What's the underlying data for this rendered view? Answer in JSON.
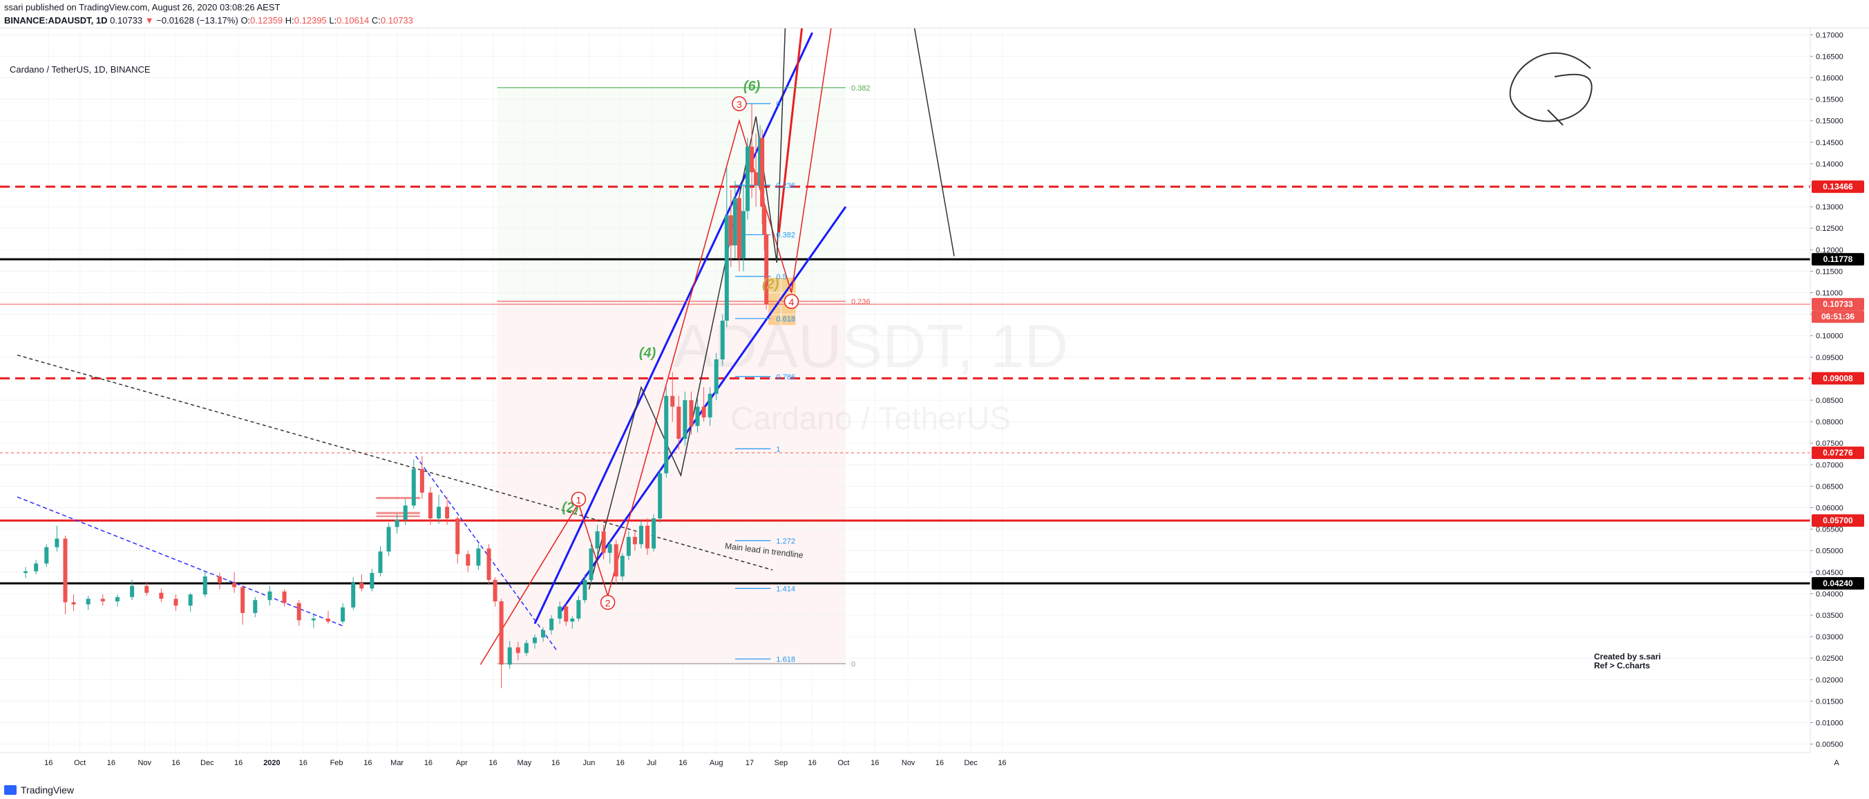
{
  "header": {
    "published": "ssari published on TradingView.com, August 26, 2020 03:08:26 AEST",
    "symbol": "BINANCE:ADAUSDT, 1D",
    "last": "0.10733",
    "change": "−0.01628 (−13.17%)",
    "o_label": "O:",
    "o": "0.12359",
    "h_label": "H:",
    "h": "0.12395",
    "l_label": "L:",
    "l": "0.10614",
    "c_label": "C:",
    "c": "0.10733"
  },
  "legend": "Cardano / TetherUS, 1D, BINANCE",
  "watermark": {
    "symbol": "ADAUSDT, 1D",
    "name": "Cardano / TetherUS"
  },
  "footer": {
    "brand": "TradingView",
    "corner": "A"
  },
  "credit": {
    "line1": "Created by s.sari",
    "line2": "Ref > C.charts"
  },
  "colors": {
    "up": "#26a69a",
    "down": "#ef5350",
    "red": "#e91e1e",
    "blue": "#1a1aff",
    "fib": "#2196f3",
    "green": "#4caf50",
    "black": "#000000"
  },
  "chart_data": {
    "type": "candlestick",
    "x_ticks": [
      "16",
      "Oct",
      "16",
      "Nov",
      "16",
      "Dec",
      "16",
      "2020",
      "16",
      "Feb",
      "16",
      "Mar",
      "16",
      "Apr",
      "16",
      "May",
      "16",
      "Jun",
      "16",
      "Jul",
      "16",
      "Aug",
      "17",
      "Sep",
      "16",
      "Oct",
      "16",
      "Nov",
      "16",
      "Dec",
      "16"
    ],
    "x_tick_dates": [
      "2019-09-16",
      "2019-10-01",
      "2019-10-16",
      "2019-11-01",
      "2019-11-16",
      "2019-12-01",
      "2019-12-16",
      "2020-01-01",
      "2020-01-16",
      "2020-02-01",
      "2020-02-16",
      "2020-03-01",
      "2020-03-16",
      "2020-04-01",
      "2020-04-16",
      "2020-05-01",
      "2020-05-16",
      "2020-06-01",
      "2020-06-16",
      "2020-07-01",
      "2020-07-16",
      "2020-08-01",
      "2020-08-17",
      "2020-09-01",
      "2020-09-16",
      "2020-10-01",
      "2020-10-16",
      "2020-11-01",
      "2020-11-16",
      "2020-12-01",
      "2020-12-16"
    ],
    "y_ticks": [
      "0.17000",
      "0.16500",
      "0.16000",
      "0.15500",
      "0.15000",
      "0.14500",
      "0.14000",
      "0.13500",
      "0.13000",
      "0.12500",
      "0.12000",
      "0.11500",
      "0.11000",
      "0.10500",
      "0.10000",
      "0.09500",
      "0.09000",
      "0.08500",
      "0.08000",
      "0.07500",
      "0.07000",
      "0.06500",
      "0.06000",
      "0.05500",
      "0.05000",
      "0.04500",
      "0.04000",
      "0.03500",
      "0.03000",
      "0.02500",
      "0.02000",
      "0.01500",
      "0.01000",
      "0.00500"
    ],
    "y_range": [
      0.003,
      0.1715
    ],
    "candles": [
      {
        "d": "2019-09-05",
        "o": 0.0448,
        "h": 0.0462,
        "l": 0.0436,
        "c": 0.0452
      },
      {
        "d": "2019-09-10",
        "o": 0.0452,
        "h": 0.0478,
        "l": 0.0445,
        "c": 0.047
      },
      {
        "d": "2019-09-15",
        "o": 0.047,
        "h": 0.0515,
        "l": 0.0462,
        "c": 0.0508
      },
      {
        "d": "2019-09-20",
        "o": 0.0508,
        "h": 0.0558,
        "l": 0.0498,
        "c": 0.0528
      },
      {
        "d": "2019-09-24",
        "o": 0.0528,
        "h": 0.0535,
        "l": 0.0352,
        "c": 0.038
      },
      {
        "d": "2019-09-28",
        "o": 0.038,
        "h": 0.0398,
        "l": 0.036,
        "c": 0.0375
      },
      {
        "d": "2019-10-05",
        "o": 0.0375,
        "h": 0.0395,
        "l": 0.0362,
        "c": 0.0388
      },
      {
        "d": "2019-10-12",
        "o": 0.0388,
        "h": 0.0398,
        "l": 0.0372,
        "c": 0.0382
      },
      {
        "d": "2019-10-19",
        "o": 0.0382,
        "h": 0.0398,
        "l": 0.037,
        "c": 0.0392
      },
      {
        "d": "2019-10-26",
        "o": 0.0392,
        "h": 0.0432,
        "l": 0.0385,
        "c": 0.0418
      },
      {
        "d": "2019-11-02",
        "o": 0.0418,
        "h": 0.0428,
        "l": 0.0395,
        "c": 0.0402
      },
      {
        "d": "2019-11-09",
        "o": 0.0402,
        "h": 0.0412,
        "l": 0.038,
        "c": 0.0388
      },
      {
        "d": "2019-11-16",
        "o": 0.0388,
        "h": 0.0398,
        "l": 0.036,
        "c": 0.0372
      },
      {
        "d": "2019-11-23",
        "o": 0.0372,
        "h": 0.0402,
        "l": 0.0358,
        "c": 0.0398
      },
      {
        "d": "2019-11-30",
        "o": 0.0398,
        "h": 0.0452,
        "l": 0.0392,
        "c": 0.044
      },
      {
        "d": "2019-12-07",
        "o": 0.044,
        "h": 0.0448,
        "l": 0.041,
        "c": 0.0425
      },
      {
        "d": "2019-12-14",
        "o": 0.0425,
        "h": 0.045,
        "l": 0.0402,
        "c": 0.0415
      },
      {
        "d": "2019-12-18",
        "o": 0.0415,
        "h": 0.0418,
        "l": 0.0328,
        "c": 0.0355
      },
      {
        "d": "2019-12-24",
        "o": 0.0355,
        "h": 0.0392,
        "l": 0.0345,
        "c": 0.0385
      },
      {
        "d": "2019-12-31",
        "o": 0.0385,
        "h": 0.0418,
        "l": 0.0372,
        "c": 0.0405
      },
      {
        "d": "2020-01-07",
        "o": 0.0405,
        "h": 0.041,
        "l": 0.037,
        "c": 0.0378
      },
      {
        "d": "2020-01-14",
        "o": 0.0378,
        "h": 0.0385,
        "l": 0.0325,
        "c": 0.0338
      },
      {
        "d": "2020-01-21",
        "o": 0.0338,
        "h": 0.0352,
        "l": 0.032,
        "c": 0.0342
      },
      {
        "d": "2020-01-28",
        "o": 0.0342,
        "h": 0.036,
        "l": 0.033,
        "c": 0.0335
      },
      {
        "d": "2020-02-04",
        "o": 0.0335,
        "h": 0.0378,
        "l": 0.033,
        "c": 0.0368
      },
      {
        "d": "2020-02-09",
        "o": 0.0368,
        "h": 0.0438,
        "l": 0.0362,
        "c": 0.0425
      },
      {
        "d": "2020-02-13",
        "o": 0.0425,
        "h": 0.0445,
        "l": 0.0405,
        "c": 0.0412
      },
      {
        "d": "2020-02-18",
        "o": 0.0412,
        "h": 0.0458,
        "l": 0.0405,
        "c": 0.0448
      },
      {
        "d": "2020-02-22",
        "o": 0.0448,
        "h": 0.051,
        "l": 0.044,
        "c": 0.0498
      },
      {
        "d": "2020-02-26",
        "o": 0.0498,
        "h": 0.0565,
        "l": 0.0488,
        "c": 0.0555
      },
      {
        "d": "2020-03-01",
        "o": 0.0555,
        "h": 0.0585,
        "l": 0.054,
        "c": 0.0572
      },
      {
        "d": "2020-03-05",
        "o": 0.0572,
        "h": 0.062,
        "l": 0.056,
        "c": 0.0605
      },
      {
        "d": "2020-03-09",
        "o": 0.0605,
        "h": 0.0712,
        "l": 0.0598,
        "c": 0.069
      },
      {
        "d": "2020-03-13",
        "o": 0.069,
        "h": 0.072,
        "l": 0.062,
        "c": 0.0635
      },
      {
        "d": "2020-03-17",
        "o": 0.0635,
        "h": 0.0648,
        "l": 0.056,
        "c": 0.0575
      },
      {
        "d": "2020-03-21",
        "o": 0.0575,
        "h": 0.063,
        "l": 0.0562,
        "c": 0.0602
      },
      {
        "d": "2020-03-25",
        "o": 0.0602,
        "h": 0.0625,
        "l": 0.056,
        "c": 0.0575
      },
      {
        "d": "2020-03-30",
        "o": 0.0575,
        "h": 0.058,
        "l": 0.047,
        "c": 0.0492
      },
      {
        "d": "2020-04-04",
        "o": 0.0492,
        "h": 0.05,
        "l": 0.045,
        "c": 0.0465
      },
      {
        "d": "2020-04-09",
        "o": 0.0465,
        "h": 0.0515,
        "l": 0.0455,
        "c": 0.0505
      },
      {
        "d": "2020-04-14",
        "o": 0.0505,
        "h": 0.0515,
        "l": 0.042,
        "c": 0.0432
      },
      {
        "d": "2020-04-17",
        "o": 0.0432,
        "h": 0.0438,
        "l": 0.037,
        "c": 0.0382
      },
      {
        "d": "2020-04-20",
        "o": 0.0382,
        "h": 0.0388,
        "l": 0.018,
        "c": 0.0235
      },
      {
        "d": "2020-04-24",
        "o": 0.0235,
        "h": 0.029,
        "l": 0.0225,
        "c": 0.0275
      },
      {
        "d": "2020-04-28",
        "o": 0.0275,
        "h": 0.0288,
        "l": 0.0245,
        "c": 0.0262
      },
      {
        "d": "2020-05-02",
        "o": 0.0262,
        "h": 0.0292,
        "l": 0.0255,
        "c": 0.0285
      },
      {
        "d": "2020-05-06",
        "o": 0.0285,
        "h": 0.0305,
        "l": 0.0272,
        "c": 0.0298
      },
      {
        "d": "2020-05-10",
        "o": 0.0298,
        "h": 0.0322,
        "l": 0.0288,
        "c": 0.0315
      },
      {
        "d": "2020-05-14",
        "o": 0.0315,
        "h": 0.035,
        "l": 0.0305,
        "c": 0.0342
      },
      {
        "d": "2020-05-18",
        "o": 0.0342,
        "h": 0.0382,
        "l": 0.033,
        "c": 0.037
      },
      {
        "d": "2020-05-21",
        "o": 0.037,
        "h": 0.0378,
        "l": 0.0325,
        "c": 0.0335
      },
      {
        "d": "2020-05-24",
        "o": 0.0335,
        "h": 0.0348,
        "l": 0.0318,
        "c": 0.0342
      },
      {
        "d": "2020-05-27",
        "o": 0.0342,
        "h": 0.0395,
        "l": 0.0335,
        "c": 0.0385
      },
      {
        "d": "2020-05-30",
        "o": 0.0385,
        "h": 0.0445,
        "l": 0.0378,
        "c": 0.0432
      },
      {
        "d": "2020-06-02",
        "o": 0.0432,
        "h": 0.052,
        "l": 0.0425,
        "c": 0.0505
      },
      {
        "d": "2020-06-05",
        "o": 0.0505,
        "h": 0.056,
        "l": 0.0492,
        "c": 0.0545
      },
      {
        "d": "2020-06-08",
        "o": 0.0545,
        "h": 0.056,
        "l": 0.048,
        "c": 0.0495
      },
      {
        "d": "2020-06-11",
        "o": 0.0495,
        "h": 0.0525,
        "l": 0.047,
        "c": 0.0515
      },
      {
        "d": "2020-06-14",
        "o": 0.0515,
        "h": 0.0525,
        "l": 0.042,
        "c": 0.044
      },
      {
        "d": "2020-06-17",
        "o": 0.044,
        "h": 0.0495,
        "l": 0.043,
        "c": 0.0488
      },
      {
        "d": "2020-06-20",
        "o": 0.0488,
        "h": 0.0545,
        "l": 0.0478,
        "c": 0.0532
      },
      {
        "d": "2020-06-23",
        "o": 0.0532,
        "h": 0.0548,
        "l": 0.05,
        "c": 0.0515
      },
      {
        "d": "2020-06-26",
        "o": 0.0515,
        "h": 0.057,
        "l": 0.0505,
        "c": 0.0558
      },
      {
        "d": "2020-06-29",
        "o": 0.0558,
        "h": 0.0575,
        "l": 0.049,
        "c": 0.0505
      },
      {
        "d": "2020-07-02",
        "o": 0.0505,
        "h": 0.0585,
        "l": 0.0498,
        "c": 0.0575
      },
      {
        "d": "2020-07-05",
        "o": 0.0575,
        "h": 0.069,
        "l": 0.0565,
        "c": 0.068
      },
      {
        "d": "2020-07-08",
        "o": 0.068,
        "h": 0.088,
        "l": 0.067,
        "c": 0.086
      },
      {
        "d": "2020-07-11",
        "o": 0.086,
        "h": 0.0915,
        "l": 0.08,
        "c": 0.0835
      },
      {
        "d": "2020-07-14",
        "o": 0.0835,
        "h": 0.086,
        "l": 0.0735,
        "c": 0.076
      },
      {
        "d": "2020-07-17",
        "o": 0.076,
        "h": 0.087,
        "l": 0.0745,
        "c": 0.085
      },
      {
        "d": "2020-07-20",
        "o": 0.085,
        "h": 0.087,
        "l": 0.077,
        "c": 0.079
      },
      {
        "d": "2020-07-23",
        "o": 0.079,
        "h": 0.0855,
        "l": 0.0775,
        "c": 0.0835
      },
      {
        "d": "2020-07-26",
        "o": 0.0835,
        "h": 0.088,
        "l": 0.08,
        "c": 0.081
      },
      {
        "d": "2020-07-29",
        "o": 0.081,
        "h": 0.088,
        "l": 0.079,
        "c": 0.0865
      },
      {
        "d": "2020-08-01",
        "o": 0.0865,
        "h": 0.096,
        "l": 0.085,
        "c": 0.0945
      },
      {
        "d": "2020-08-04",
        "o": 0.0945,
        "h": 0.105,
        "l": 0.093,
        "c": 0.1035
      },
      {
        "d": "2020-08-06",
        "o": 0.1035,
        "h": 0.139,
        "l": 0.102,
        "c": 0.128
      },
      {
        "d": "2020-08-08",
        "o": 0.128,
        "h": 0.134,
        "l": 0.116,
        "c": 0.121
      },
      {
        "d": "2020-08-10",
        "o": 0.121,
        "h": 0.136,
        "l": 0.118,
        "c": 0.132
      },
      {
        "d": "2020-08-12",
        "o": 0.132,
        "h": 0.133,
        "l": 0.115,
        "c": 0.118
      },
      {
        "d": "2020-08-14",
        "o": 0.118,
        "h": 0.135,
        "l": 0.115,
        "c": 0.129
      },
      {
        "d": "2020-08-16",
        "o": 0.129,
        "h": 0.146,
        "l": 0.127,
        "c": 0.144
      },
      {
        "d": "2020-08-18",
        "o": 0.144,
        "h": 0.154,
        "l": 0.132,
        "c": 0.138
      },
      {
        "d": "2020-08-20",
        "o": 0.138,
        "h": 0.147,
        "l": 0.13,
        "c": 0.135
      },
      {
        "d": "2020-08-22",
        "o": 0.135,
        "h": 0.149,
        "l": 0.134,
        "c": 0.146
      },
      {
        "d": "2020-08-23",
        "o": 0.146,
        "h": 0.148,
        "l": 0.126,
        "c": 0.13
      },
      {
        "d": "2020-08-24",
        "o": 0.13,
        "h": 0.132,
        "l": 0.12,
        "c": 0.1236
      },
      {
        "d": "2020-08-25",
        "o": 0.12359,
        "h": 0.12395,
        "l": 0.10614,
        "c": 0.10733
      }
    ],
    "price_labels": [
      {
        "value": 0.13466,
        "text": "0.13466",
        "color": "#e91e1e"
      },
      {
        "value": 0.11778,
        "text": "0.11778",
        "color": "#000000"
      },
      {
        "value": 0.10733,
        "text": "0.10733",
        "color": "#ef5350"
      },
      {
        "value": 0.09008,
        "text": "0.09008",
        "color": "#e91e1e"
      },
      {
        "value": 0.07276,
        "text": "0.07276",
        "color": "#e91e1e"
      },
      {
        "value": 0.057,
        "text": "0.05700",
        "color": "#e91e1e"
      },
      {
        "value": 0.0424,
        "text": "0.04240",
        "color": "#000000"
      }
    ],
    "countdown": "06:51:36",
    "horizontal_lines": [
      {
        "value": 0.13466,
        "style": "dashed",
        "color": "#e91e1e"
      },
      {
        "value": 0.11778,
        "style": "solid",
        "color": "#000000"
      },
      {
        "value": 0.10733,
        "style": "thin",
        "color": "#ef5350"
      },
      {
        "value": 0.09008,
        "style": "dashed",
        "color": "#e91e1e"
      },
      {
        "value": 0.07276,
        "style": "dotted",
        "color": "#ef5350"
      },
      {
        "value": 0.057,
        "style": "solid",
        "color": "#e91e1e"
      },
      {
        "value": 0.0424,
        "style": "solid",
        "color": "#000000"
      }
    ],
    "fib_retracement": [
      {
        "level": "0",
        "value": 0.154
      },
      {
        "level": "0.236",
        "value": 0.135
      },
      {
        "level": "0.382",
        "value": 0.1235
      },
      {
        "level": "0.5",
        "value": 0.1138
      },
      {
        "level": "0.618",
        "value": 0.104
      },
      {
        "level": "0.786",
        "value": 0.0905
      },
      {
        "level": "1",
        "value": 0.0737
      },
      {
        "level": "1.272",
        "value": 0.0523
      },
      {
        "level": "1.414",
        "value": 0.0412
      },
      {
        "level": "1.618",
        "value": 0.0248
      }
    ],
    "fib_extension": [
      {
        "level": "0.382",
        "value": 0.1577
      },
      {
        "level": "0.236",
        "value": 0.108
      },
      {
        "level": "0",
        "value": 0.0237
      }
    ],
    "wave_labels": [
      {
        "text": "(6)",
        "color": "#4caf50",
        "d": "2020-08-18",
        "v": 0.157
      },
      {
        "text": "(4)",
        "color": "#4caf50",
        "d": "2020-06-29",
        "v": 0.095
      },
      {
        "text": "(2)",
        "color": "#4caf50",
        "d": "2020-05-23",
        "v": 0.059
      },
      {
        "text": "(2)",
        "color": "#c8b04a",
        "d": "2020-08-27",
        "v": 0.111
      },
      {
        "text": "3",
        "color": "#e91e1e",
        "d": "2020-08-12",
        "v": 0.153
      },
      {
        "text": "1",
        "color": "#e91e1e",
        "d": "2020-05-27",
        "v": 0.061
      },
      {
        "text": "2",
        "color": "#e91e1e",
        "d": "2020-06-10",
        "v": 0.037
      },
      {
        "text": "4",
        "color": "#e91e1e",
        "d": "2020-09-06",
        "v": 0.107
      }
    ],
    "trendline_label": "Main lead in trendline"
  }
}
